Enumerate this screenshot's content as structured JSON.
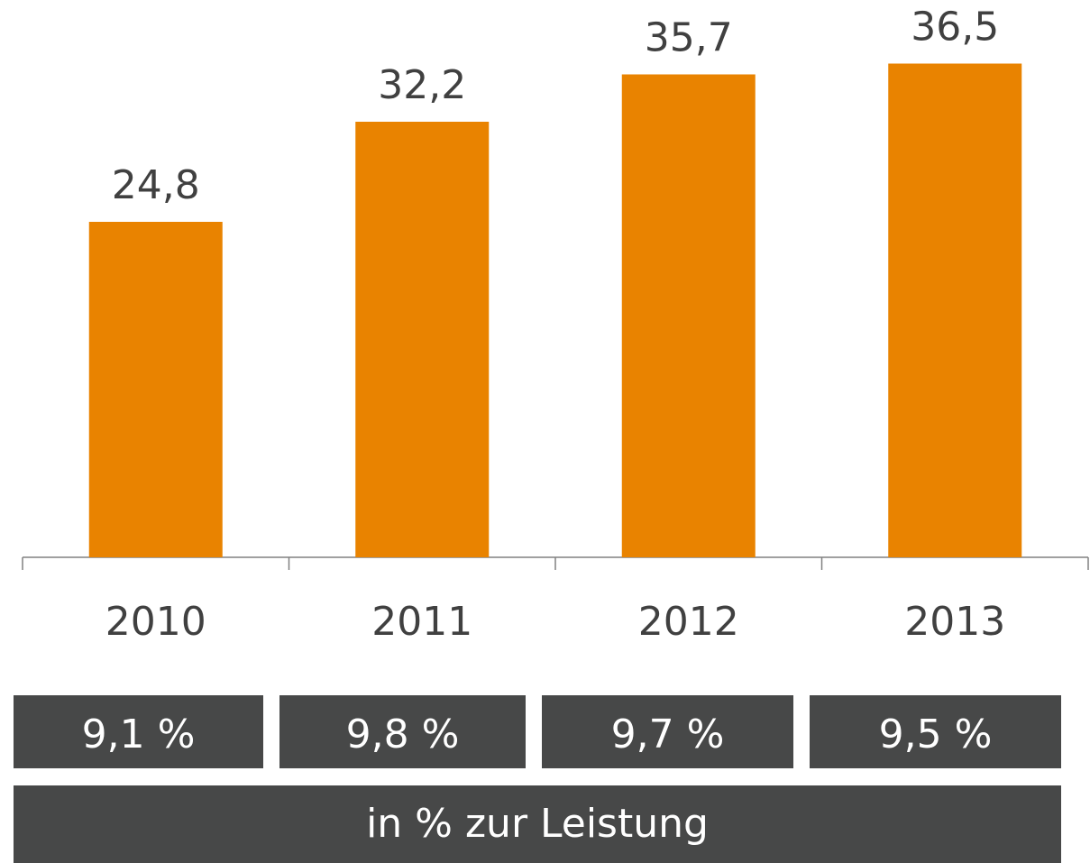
{
  "chart_data": {
    "type": "bar",
    "categories": [
      "2010",
      "2011",
      "2012",
      "2013"
    ],
    "values": [
      24.8,
      32.2,
      35.7,
      36.5
    ],
    "value_labels": [
      "24,8",
      "32,2",
      "35,7",
      "36,5"
    ],
    "color": "#e98300",
    "ylim": [
      0,
      41.2
    ],
    "ratio_labels": [
      "9,1 %",
      "9,8 %",
      "9,7 %",
      "9,5 %"
    ],
    "ratio_caption": "in % zur Leistung"
  }
}
